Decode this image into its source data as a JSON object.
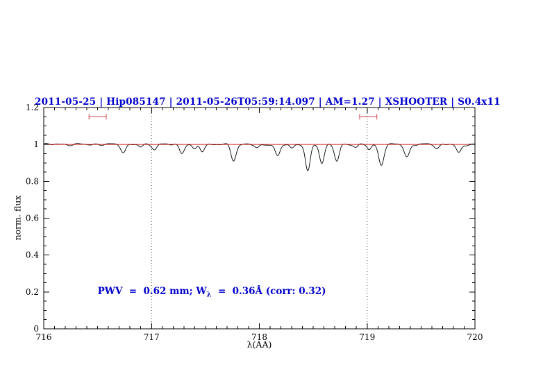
{
  "chart_data": {
    "type": "line",
    "title": "2011-05-25 | Hip085147 | 2011-05-26T05:59:14.097 | AM=1.27 | XSHOOTER | S0.4x11",
    "xlabel": "λ(AA)",
    "ylabel": "norm. flux",
    "xlim": [
      716,
      720
    ],
    "ylim": [
      0,
      1.2
    ],
    "x_ticks": [
      716,
      717,
      718,
      719,
      720
    ],
    "x_tick_labels": [
      "716",
      "717",
      "718",
      "719",
      "720"
    ],
    "x_minor_step": 0.1,
    "y_ticks": [
      0,
      0.2,
      0.4,
      0.6,
      0.8,
      1,
      1.2
    ],
    "y_tick_labels": [
      "0",
      "0.2",
      "0.4",
      "0.6",
      "0.8",
      "1",
      "1.2"
    ],
    "y_minor_step": 0.05,
    "legend": "none",
    "grid": "off",
    "dotted_vlines": [
      717,
      719
    ],
    "continuum_level": 1.0,
    "spectrum": {
      "baseline": 1.0,
      "sample_step": 0.005,
      "noise_components": [
        {
          "amp": 0.0035,
          "freq": 41.0,
          "phase": 0.0
        },
        {
          "amp": 0.0025,
          "freq": 23.7,
          "phase": 1.3
        },
        {
          "amp": 0.0018,
          "freq": 67.0,
          "phase": 0.5
        }
      ],
      "absorption_lines": [
        {
          "center": 716.74,
          "depth": 0.042,
          "sigma": 0.022
        },
        {
          "center": 716.9,
          "depth": 0.015,
          "sigma": 0.02
        },
        {
          "center": 717.03,
          "depth": 0.025,
          "sigma": 0.02
        },
        {
          "center": 717.28,
          "depth": 0.045,
          "sigma": 0.022
        },
        {
          "center": 717.4,
          "depth": 0.03,
          "sigma": 0.02
        },
        {
          "center": 717.47,
          "depth": 0.035,
          "sigma": 0.02
        },
        {
          "center": 717.76,
          "depth": 0.085,
          "sigma": 0.024
        },
        {
          "center": 717.98,
          "depth": 0.022,
          "sigma": 0.02
        },
        {
          "center": 718.17,
          "depth": 0.068,
          "sigma": 0.022
        },
        {
          "center": 718.3,
          "depth": 0.02,
          "sigma": 0.018
        },
        {
          "center": 718.45,
          "depth": 0.15,
          "sigma": 0.022
        },
        {
          "center": 718.58,
          "depth": 0.1,
          "sigma": 0.022
        },
        {
          "center": 718.72,
          "depth": 0.092,
          "sigma": 0.022
        },
        {
          "center": 718.9,
          "depth": 0.015,
          "sigma": 0.018
        },
        {
          "center": 719.02,
          "depth": 0.03,
          "sigma": 0.018
        },
        {
          "center": 719.13,
          "depth": 0.11,
          "sigma": 0.024
        },
        {
          "center": 719.37,
          "depth": 0.068,
          "sigma": 0.024
        },
        {
          "center": 719.65,
          "depth": 0.02,
          "sigma": 0.02
        },
        {
          "center": 719.85,
          "depth": 0.048,
          "sigma": 0.022
        }
      ]
    },
    "interval_markers": [
      {
        "x_start": 716.42,
        "x_end": 716.58,
        "y": 1.15
      },
      {
        "x_start": 718.93,
        "x_end": 719.09,
        "y": 1.15
      }
    ],
    "annotation": {
      "prefix": "PWV  =  0.62 mm; W",
      "subscript": "λ",
      "suffix": "  =  0.36Å (corr: 0.32)",
      "x": 716.5,
      "y": 0.2
    },
    "colors": {
      "title": "#0000cc",
      "annotation": "#0000cc",
      "spectrum": "#000000",
      "continuum": "#cc2222",
      "markers": "#cc4444",
      "axis": "#000000",
      "dotted_line": "#444444",
      "background": "#ffffff"
    }
  }
}
